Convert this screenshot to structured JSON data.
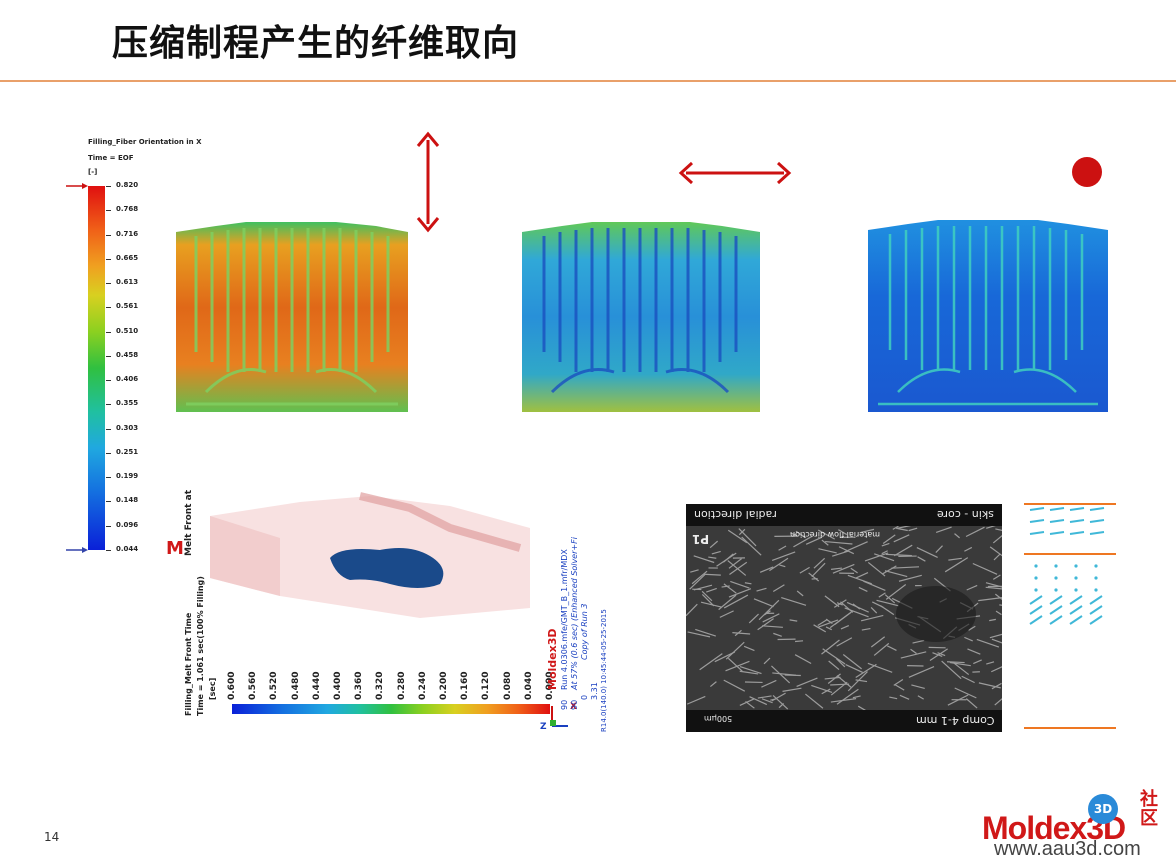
{
  "title": "压缩制程产生的纤维取向",
  "page_number": "14",
  "colors": {
    "accent_rule": "#e9a06a",
    "arrow_red": "#cc1111",
    "logo_red": "#d01818"
  },
  "fiber_legend": {
    "title": "Filling_Fiber Orientation in X",
    "time": "Time = EOF",
    "unit": "[-]",
    "ticks": [
      "0.820",
      "0.768",
      "0.716",
      "0.665",
      "0.613",
      "0.561",
      "0.510",
      "0.458",
      "0.406",
      "0.355",
      "0.303",
      "0.251",
      "0.199",
      "0.148",
      "0.096",
      "0.044"
    ]
  },
  "melt_front": {
    "label_top": "Melt Front at",
    "brand_mark": "M",
    "title": "Filling_Melt Front Time",
    "time": "Time = 1.061 sec(100% Filling)",
    "unit": "[sec]",
    "ticks": [
      "0.600",
      "0.560",
      "0.520",
      "0.480",
      "0.440",
      "0.400",
      "0.360",
      "0.320",
      "0.280",
      "0.240",
      "0.200",
      "0.160",
      "0.120",
      "0.080",
      "0.040",
      "0.000"
    ],
    "brand": "Moldex3D",
    "run_lines": [
      "Run 4.0306.mfe/GMT_B_1.mfr/MDX",
      "At 57% (0.6 sec) (Enhanced Solver+Fi",
      "Copy of Run 3"
    ],
    "values": [
      "90",
      "90",
      "0",
      "3.31"
    ],
    "footer": "R14.0(140.0) 10:45:44-05-25-2015",
    "axis_x": "X",
    "axis_z": "Z"
  },
  "sem": {
    "top_left": "radial direction",
    "top_right": "skin - core",
    "corner": "P1",
    "sub_label": "material flow direction",
    "scale": "500μm",
    "bottom_right": "Comp 4-1 mm"
  },
  "logo": {
    "main": "Moldex3D",
    "badge": "3D",
    "side": "社区",
    "url": "www.aau3d.com"
  }
}
